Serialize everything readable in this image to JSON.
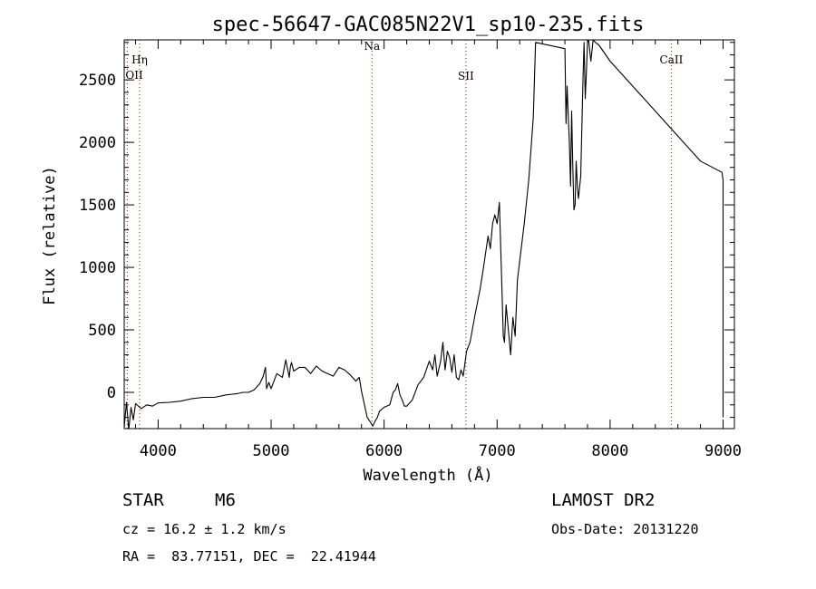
{
  "chart_data": {
    "type": "line",
    "title": "spec-56647-GAC085N22V1_sp10-235.fits",
    "xlabel": "Wavelength (Å)",
    "ylabel": "Flux (relative)",
    "xlim": [
      3700,
      9100
    ],
    "ylim": [
      -290,
      2820
    ],
    "xticks": [
      4000,
      5000,
      6000,
      7000,
      8000,
      9000
    ],
    "yticks": [
      0,
      500,
      1000,
      1500,
      2000,
      2500
    ],
    "series": [
      {
        "x": [
          3700,
          3720,
          3740,
          3760,
          3780,
          3800,
          3850,
          3900,
          3950,
          4000,
          4100,
          4200,
          4300,
          4400,
          4500,
          4600,
          4700,
          4750,
          4800,
          4850,
          4900,
          4930,
          4950,
          4960,
          4980,
          5000,
          5050,
          5100,
          5130,
          5160,
          5170,
          5180,
          5200,
          5250,
          5300,
          5350,
          5400,
          5450,
          5500,
          5550,
          5600,
          5650,
          5700,
          5750,
          5780,
          5800,
          5850,
          5880,
          5900,
          5920,
          5940,
          5960,
          6000,
          6050,
          6080,
          6100,
          6120,
          6140,
          6160,
          6180,
          6200,
          6250,
          6300,
          6350,
          6400,
          6430,
          6450,
          6470,
          6500,
          6520,
          6540,
          6560,
          6580,
          6600,
          6620,
          6640,
          6660,
          6680,
          6700,
          6730,
          6760,
          6800,
          6850,
          6880,
          6920,
          6940,
          6960,
          6980,
          7000,
          7020,
          7040,
          7055,
          7065,
          7080,
          7100,
          7120,
          7140,
          7160,
          7180,
          7200,
          7240,
          7280,
          7320,
          7340,
          7600,
          7610,
          7620,
          7630,
          7640,
          7650,
          7660,
          7670,
          7680,
          7690,
          7700,
          7710,
          7720,
          7740,
          7760,
          7770,
          7780,
          7790,
          7800,
          7810,
          7830,
          7850,
          7870,
          7900,
          8000,
          8200,
          8400,
          8600,
          8800,
          8990,
          9000,
          9000
        ],
        "y": [
          -280,
          -80,
          -300,
          -120,
          -220,
          -90,
          -130,
          -100,
          -110,
          -85,
          -80,
          -70,
          -50,
          -40,
          -40,
          -20,
          -10,
          0,
          0,
          20,
          70,
          130,
          200,
          30,
          80,
          30,
          150,
          120,
          260,
          120,
          200,
          240,
          170,
          200,
          200,
          150,
          210,
          170,
          150,
          130,
          200,
          180,
          140,
          90,
          120,
          10,
          -200,
          -240,
          -270,
          -230,
          -200,
          -150,
          -120,
          -100,
          0,
          20,
          70,
          -20,
          -60,
          -110,
          -110,
          -60,
          60,
          120,
          250,
          180,
          300,
          130,
          250,
          400,
          180,
          330,
          280,
          160,
          300,
          120,
          100,
          180,
          130,
          330,
          400,
          600,
          830,
          1000,
          1250,
          1150,
          1350,
          1420,
          1350,
          1520,
          900,
          450,
          400,
          700,
          500,
          300,
          600,
          450,
          900,
          1050,
          1350,
          1700,
          2200,
          2800,
          2750,
          2150,
          2450,
          2200,
          2000,
          1650,
          2250,
          1800,
          1460,
          1500,
          1850,
          1650,
          1550,
          1730,
          2500,
          2800,
          2350,
          2550,
          2800,
          2820,
          2650,
          2820,
          2800,
          2780,
          2650,
          2450,
          2250,
          2050,
          1850,
          1760,
          1700,
          -200
        ]
      }
    ],
    "annotations": [
      {
        "label": "Hη",
        "x": 3836,
        "label_y": 2630
      },
      {
        "label": "OII",
        "x": 3727,
        "label_y": 2510
      },
      {
        "label": "Na",
        "x": 5893,
        "label_y": 2740
      },
      {
        "label": "SII",
        "x": 6724,
        "label_y": 2500
      },
      {
        "label": "CaII",
        "x": 8542,
        "label_y": 2630
      }
    ],
    "grid": false,
    "legend": "none"
  },
  "info": {
    "object_class": "STAR",
    "subclass": "M6",
    "survey": "LAMOST DR2",
    "redshift": "cz = 16.2 ± 1.2 km/s",
    "obs_date": "Obs-Date: 20131220",
    "coords": "RA =  83.77151, DEC =  22.41944"
  }
}
